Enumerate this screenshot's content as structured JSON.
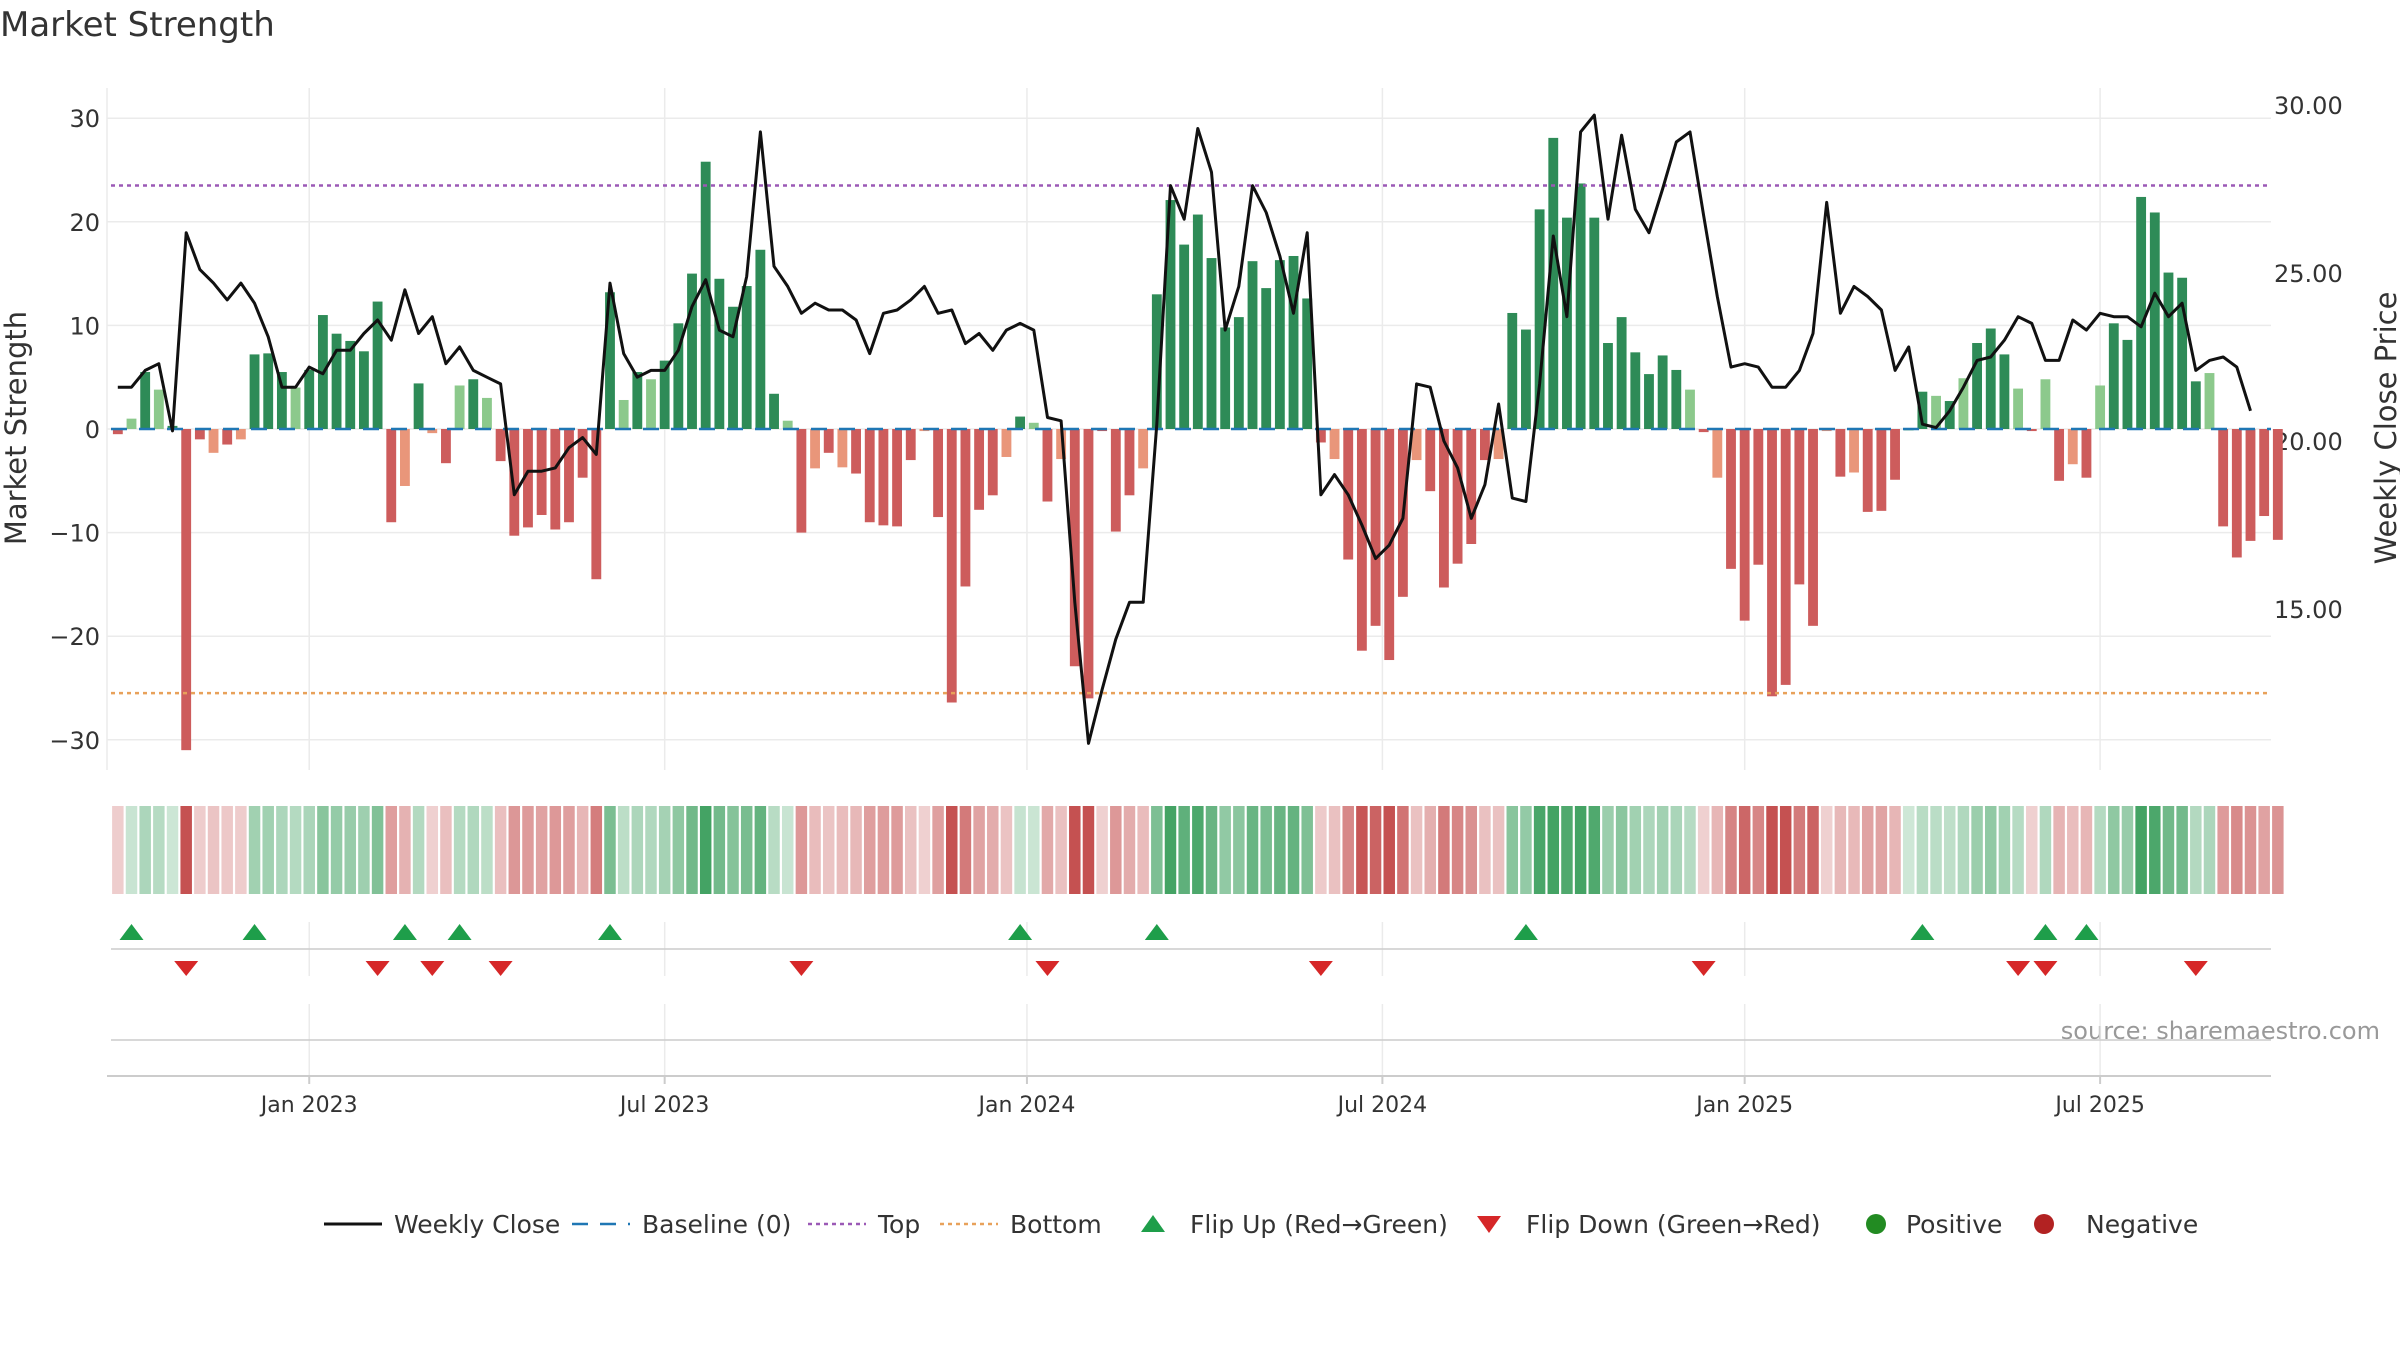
{
  "title": "Market Strength",
  "source": "source: sharemaestro.com",
  "colors": {
    "background": "#ffffff",
    "grid": "#ebebeb",
    "axis": "#cccccc",
    "text": "#333333",
    "close_line": "#111111",
    "baseline": "#1f77b4",
    "top": "#9b59b6",
    "bottom": "#e8a15a",
    "green_dark": "#2e8b57",
    "green_light": "#8cc98c",
    "red_dark": "#cd5c5c",
    "red_light": "#e9967a",
    "flip_up": "#1e9e4a",
    "flip_down": "#d62728",
    "positive": "#228b22",
    "negative": "#b22222"
  },
  "chart_data": {
    "type": "bar",
    "title": "Market Strength",
    "ylabel": "Market Strength",
    "y2label": "Weekly Close Price",
    "ylim": [
      -33,
      33
    ],
    "y2lim": [
      10.7,
      31.0
    ],
    "yticks": [
      30,
      20,
      10,
      0,
      -10,
      -20,
      -30
    ],
    "ytick_labels": [
      "30",
      "20",
      "10",
      "0",
      "−10",
      "−20",
      "−30"
    ],
    "y2ticks": [
      30,
      25,
      20,
      15
    ],
    "y2tick_labels": [
      "30.00",
      "25.00",
      "20.00",
      "15.00"
    ],
    "x_labels": [
      "Jan 2023",
      "Jul 2023",
      "Jan 2024",
      "Jul 2024",
      "Jan 2025",
      "Jul 2025"
    ],
    "x_label_weeks": [
      14,
      40,
      66.5,
      92.5,
      119,
      145
    ],
    "top_level": 23.5,
    "bottom_level": -25.5,
    "weeks": 158,
    "strength": [
      -0.5,
      1,
      5.5,
      3.8,
      0.3,
      -31,
      -1,
      -2.3,
      -1.5,
      -1,
      7.2,
      7.3,
      5.5,
      4,
      5.7,
      11,
      9.2,
      8.5,
      7.5,
      12.3,
      -9,
      -5.5,
      4.4,
      -0.4,
      -3.3,
      4.2,
      4.8,
      3,
      -3.1,
      -10.3,
      -9.5,
      -8.3,
      -9.7,
      -9,
      -4.7,
      -14.5,
      13.2,
      2.8,
      5.5,
      4.8,
      6.6,
      10.2,
      15,
      25.8,
      14.5,
      11.8,
      13.8,
      17.3,
      3.4,
      0.8,
      -10,
      -3.8,
      -2.3,
      -3.7,
      -4.3,
      -9,
      -9.3,
      -9.4,
      -3,
      -0.2,
      -8.5,
      -26.4,
      -15.2,
      -7.8,
      -6.4,
      -2.7,
      1.2,
      0.6,
      -7,
      -2.9,
      -22.9,
      -26,
      -0.2,
      -9.9,
      -6.4,
      -3.8,
      13,
      22.1,
      17.8,
      20.7,
      16.5,
      9.8,
      10.8,
      16.2,
      13.6,
      16.3,
      16.7,
      12.6,
      -1.3,
      -2.9,
      -12.6,
      -21.4,
      -19,
      -22.3,
      -16.2,
      -3,
      -6,
      -15.3,
      -13,
      -11.1,
      -3,
      -2.9,
      11.2,
      9.6,
      21.2,
      28.1,
      20.4,
      23.7,
      20.4,
      8.3,
      10.8,
      7.4,
      5.3,
      7.1,
      5.7,
      3.8,
      -0.3,
      -4.7,
      -13.5,
      -18.5,
      -13.1,
      -25.8,
      -24.7,
      -15,
      -19,
      -0.2,
      -4.6,
      -4.2,
      -8,
      -7.9,
      -4.9,
      0,
      3.6,
      3.2,
      2.7,
      4.9,
      8.3,
      9.7,
      7.2,
      3.9,
      -0.2,
      4.8,
      -5,
      -3.4,
      -4.7,
      4.2,
      10.2,
      8.6,
      22.4,
      20.9,
      15.1,
      14.6,
      4.6,
      5.4,
      -9.4,
      -12.4,
      -10.8,
      -8.4,
      -10.7
    ],
    "series": [
      {
        "name": "Weekly Close",
        "type": "line",
        "axis": "right",
        "values": [
          21.6,
          21.6,
          22.1,
          22.3,
          20.3,
          26.2,
          25.1,
          24.7,
          24.2,
          24.7,
          24.1,
          23.1,
          21.6,
          21.6,
          22.2,
          22,
          22.7,
          22.7,
          23.2,
          23.6,
          23,
          24.5,
          23.2,
          23.7,
          22.3,
          22.8,
          22.1,
          21.9,
          21.7,
          18.4,
          19.1,
          19.1,
          19.2,
          19.8,
          20.1,
          19.6,
          24.7,
          22.6,
          21.9,
          22.1,
          22.1,
          22.7,
          24,
          24.8,
          23.3,
          23.1,
          24.9,
          29.2,
          25.2,
          24.6,
          23.8,
          24.1,
          23.9,
          23.9,
          23.6,
          22.6,
          23.8,
          23.9,
          24.2,
          24.6,
          23.8,
          23.9,
          22.9,
          23.2,
          22.7,
          23.3,
          23.5,
          23.3,
          20.7,
          20.6,
          15.2,
          11,
          12.6,
          14.1,
          15.2,
          15.2,
          20.5,
          27.6,
          26.6,
          29.3,
          28,
          23.3,
          24.6,
          27.6,
          26.8,
          25.5,
          23.8,
          26.2,
          18.4,
          19,
          18.4,
          17.5,
          16.5,
          16.9,
          17.7,
          21.7,
          21.6,
          20,
          19.2,
          17.7,
          18.7,
          21.1,
          18.3,
          18.2,
          21.7,
          26.1,
          23.7,
          29.2,
          29.7,
          26.6,
          29.1,
          26.9,
          26.2,
          27.5,
          28.9,
          29.2,
          26.7,
          24.3,
          22.2,
          22.3,
          22.2,
          21.6,
          21.6,
          22.1,
          23.2,
          27.1,
          23.8,
          24.6,
          24.3,
          23.9,
          22.1,
          22.8,
          20.5,
          20.4,
          20.9,
          21.6,
          22.4,
          22.5,
          23,
          23.7,
          23.5,
          22.4,
          22.4,
          23.6,
          23.3,
          23.8,
          23.7,
          23.7,
          23.4,
          24.4,
          23.7,
          24.1,
          22.1,
          22.4,
          22.5,
          22.2,
          20.9
        ]
      },
      {
        "name": "Baseline (0)",
        "type": "line",
        "value": 0
      },
      {
        "name": "Top",
        "type": "line",
        "value": 23.5
      },
      {
        "name": "Bottom",
        "type": "line",
        "value": -25.5
      },
      {
        "name": "Flip Up (Red→Green)",
        "type": "marker",
        "weeks": [
          1,
          10,
          21,
          25,
          36,
          66,
          76,
          103,
          132,
          141,
          144
        ]
      },
      {
        "name": "Flip Down (Green→Red)",
        "type": "marker",
        "weeks": [
          5,
          19,
          23,
          28,
          50,
          68,
          88,
          116,
          139,
          141,
          152
        ]
      },
      {
        "name": "Positive",
        "type": "marker"
      },
      {
        "name": "Negative",
        "type": "marker"
      }
    ]
  },
  "legend": [
    {
      "key": "close",
      "label": "Weekly Close"
    },
    {
      "key": "baseline",
      "label": "Baseline (0)"
    },
    {
      "key": "top",
      "label": "Top"
    },
    {
      "key": "bottom",
      "label": "Bottom"
    },
    {
      "key": "flip_up",
      "label": "Flip Up (Red→Green)"
    },
    {
      "key": "flip_down",
      "label": "Flip Down (Green→Red)"
    },
    {
      "key": "positive",
      "label": "Positive"
    },
    {
      "key": "negative",
      "label": "Negative"
    }
  ]
}
